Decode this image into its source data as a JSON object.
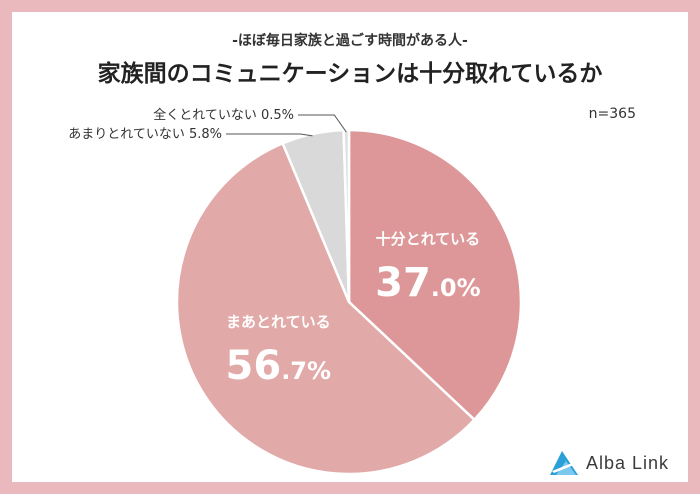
{
  "header": {
    "subtitle": "-ほぼ毎日家族と過ごす時間がある人-",
    "title": "家族間のコミュニケーションは十分取れているか"
  },
  "sample_size": "n=365",
  "logo": {
    "text": "Alba Link",
    "icon": "alba-link-logo-icon"
  },
  "colors": {
    "frame": "#e9b9bd",
    "slice_1": "#dd9798",
    "slice_2": "#e2a9a9",
    "slice_3": "#d9d9d9",
    "slice_4": "#e0e0e0"
  },
  "chart_data": {
    "type": "pie",
    "start": "12 o'clock, clockwise",
    "slices": [
      {
        "label": "十分とれている",
        "value": 37.0,
        "value_text": "37.0%",
        "color": "#dd9798",
        "label_placement": "inside"
      },
      {
        "label": "まあとれている",
        "value": 56.7,
        "value_text": "56.7%",
        "color": "#e2a9a9",
        "label_placement": "inside"
      },
      {
        "label": "あまりとれていない",
        "value": 5.8,
        "value_text": "5.8%",
        "color": "#d9d9d9",
        "label_placement": "callout"
      },
      {
        "label": "全くとれていない",
        "value": 0.5,
        "value_text": "0.5%",
        "color": "#e0e0e0",
        "label_placement": "callout"
      }
    ]
  }
}
